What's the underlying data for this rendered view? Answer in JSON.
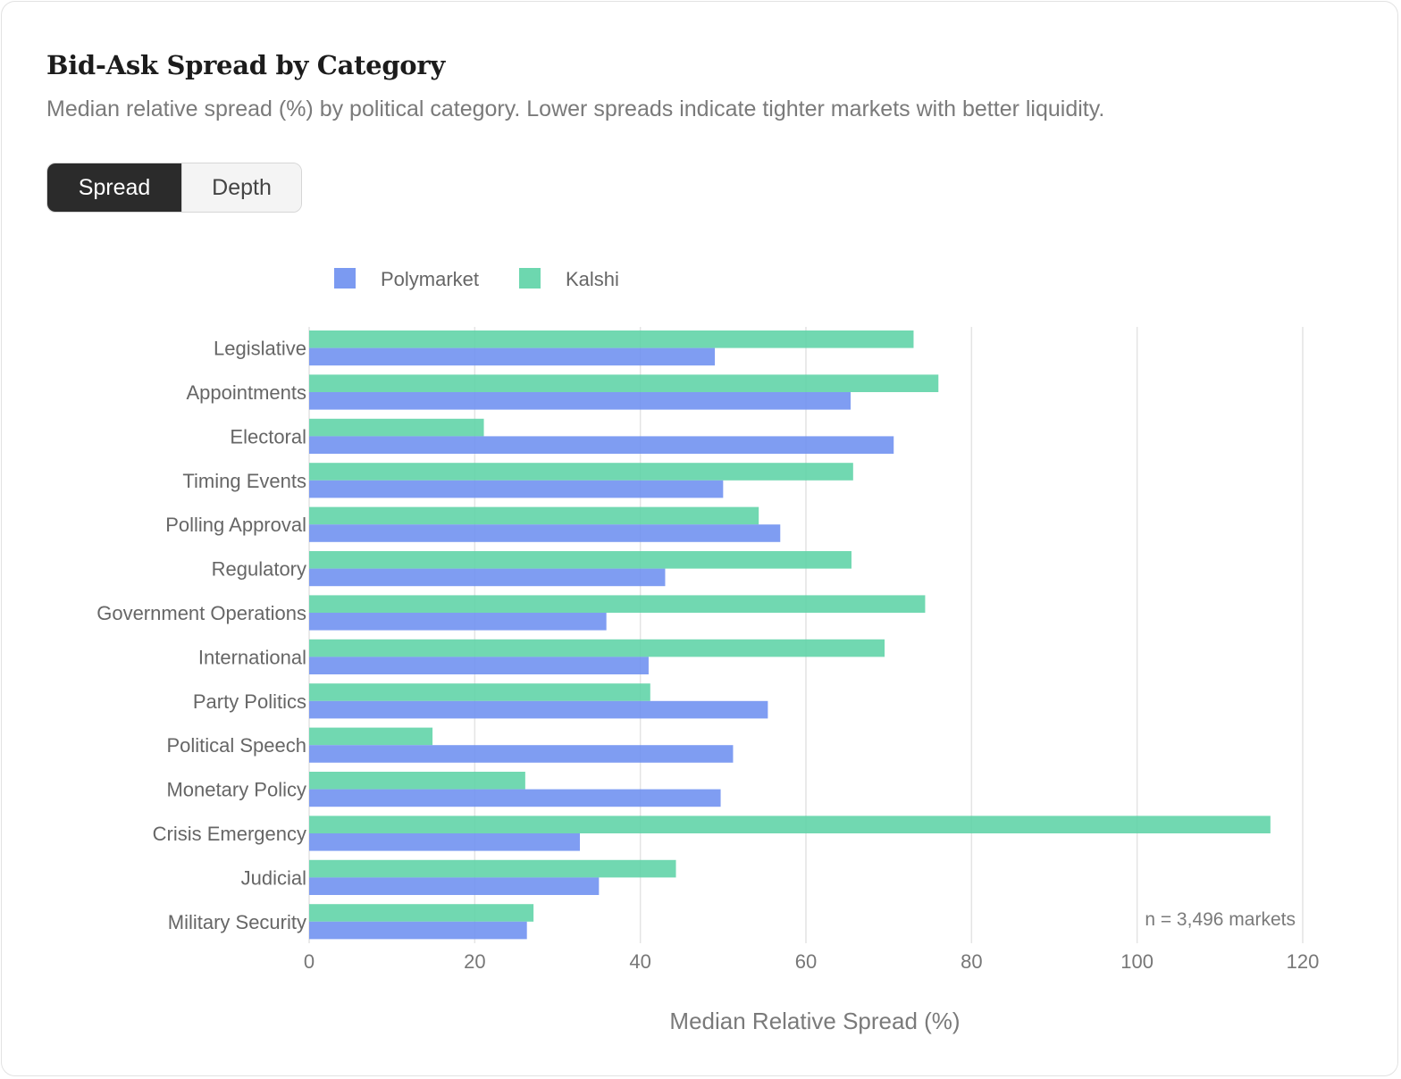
{
  "header": {
    "title": "Bid-Ask Spread by Category",
    "subtitle": "Median relative spread (%) by political category. Lower spreads indicate tighter markets with better liquidity."
  },
  "toggle": {
    "spread_label": "Spread",
    "depth_label": "Depth",
    "selected": "Spread"
  },
  "chart_data": {
    "type": "bar",
    "orientation": "horizontal",
    "categories": [
      "Legislative",
      "Appointments",
      "Electoral",
      "Timing Events",
      "Polling Approval",
      "Regulatory",
      "Government Operations",
      "International",
      "Party Politics",
      "Political Speech",
      "Monetary Policy",
      "Crisis Emergency",
      "Judicial",
      "Military Security"
    ],
    "series": [
      {
        "name": "Kalshi",
        "color": "#5dd3a6",
        "values": [
          73,
          76,
          21.1,
          65.7,
          54.3,
          65.5,
          74.4,
          69.5,
          41.2,
          14.9,
          26.1,
          116.1,
          44.3,
          27.1
        ]
      },
      {
        "name": "Polymarket",
        "color": "#6d8ff0",
        "values": [
          49,
          65.4,
          70.6,
          50,
          56.9,
          43,
          35.9,
          41,
          55.4,
          51.2,
          49.7,
          32.7,
          35,
          26.3
        ]
      }
    ],
    "legend_order": [
      "Polymarket",
      "Kalshi"
    ],
    "xlabel": "Median Relative Spread (%)",
    "ylabel": "",
    "xlim": [
      0,
      120
    ],
    "xticks": [
      0,
      20,
      40,
      60,
      80,
      100,
      120
    ],
    "grid": "vertical",
    "legend_position": "top-left",
    "annotation": "n = 3,496 markets"
  }
}
